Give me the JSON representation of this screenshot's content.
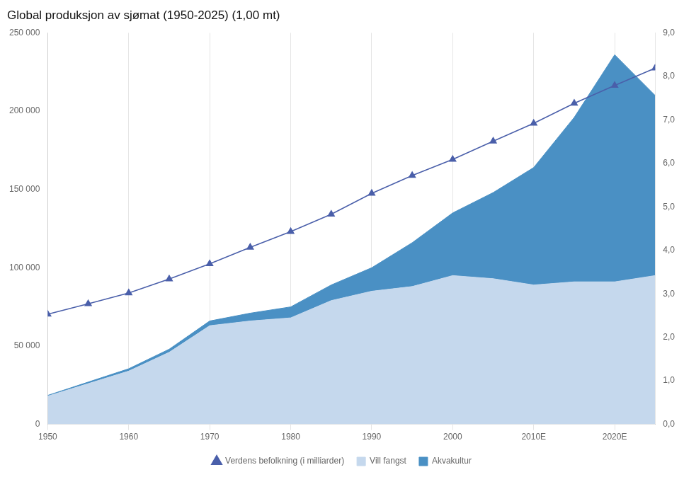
{
  "chart_data": {
    "type": "area",
    "title": "Global produksjon av sjømat (1950-2025) (1,00 mt)",
    "x": [
      1950,
      1955,
      1960,
      1965,
      1970,
      1975,
      1980,
      1985,
      1990,
      1995,
      2000,
      2005,
      2010,
      2015,
      2020,
      2025
    ],
    "series": [
      {
        "name": "Vill fangst",
        "type": "area",
        "color": "#c5d8ed",
        "values": [
          18000,
          26000,
          34000,
          46000,
          63000,
          66000,
          68000,
          79000,
          85000,
          88000,
          95000,
          93000,
          89000,
          91000,
          91000,
          95000
        ]
      },
      {
        "name": "Akvakultur",
        "type": "area",
        "color": "#4a90c4",
        "values": [
          500,
          1000,
          1500,
          2000,
          3000,
          5000,
          7000,
          10000,
          15000,
          28000,
          40000,
          55000,
          75000,
          105000,
          145000,
          115000
        ]
      },
      {
        "name": "Verdens befolkning (i milliarder)",
        "type": "line",
        "axis": "y2",
        "color": "#4a5faa",
        "marker": "triangle",
        "line_style": "solid",
        "values": [
          2.53,
          2.77,
          3.02,
          3.34,
          3.69,
          4.07,
          4.43,
          4.83,
          5.31,
          5.72,
          6.09,
          6.51,
          6.92,
          7.38,
          7.79,
          8.19
        ]
      }
    ],
    "stacked": true,
    "xlim": [
      1950,
      2025
    ],
    "xticks": [
      1950,
      1960,
      1970,
      1980,
      1990,
      2000,
      {
        "value": 2010,
        "label": "2010E"
      },
      {
        "value": 2020,
        "label": "2020E"
      }
    ],
    "ylim": [
      0,
      250000
    ],
    "yticks": [
      0,
      {
        "value": 50000,
        "label": "50 000"
      },
      {
        "value": 100000,
        "label": "100 000"
      },
      {
        "value": 150000,
        "label": "150 000"
      },
      {
        "value": 200000,
        "label": "200 000"
      },
      {
        "value": 250000,
        "label": "250 000"
      }
    ],
    "y2lim": [
      0,
      9.0
    ],
    "y2ticks": [
      {
        "value": 0,
        "label": "0,0"
      },
      {
        "value": 1,
        "label": "1,0"
      },
      {
        "value": 2,
        "label": "2,0"
      },
      {
        "value": 3,
        "label": "3,0"
      },
      {
        "value": 4,
        "label": "4,0"
      },
      {
        "value": 5,
        "label": "5,0"
      },
      {
        "value": 6,
        "label": "6,0"
      },
      {
        "value": 7,
        "label": "7,0"
      },
      {
        "value": 8,
        "label": "8,0"
      },
      {
        "value": 9,
        "label": "9,0"
      }
    ],
    "grid": "x",
    "legend": "bottom"
  }
}
